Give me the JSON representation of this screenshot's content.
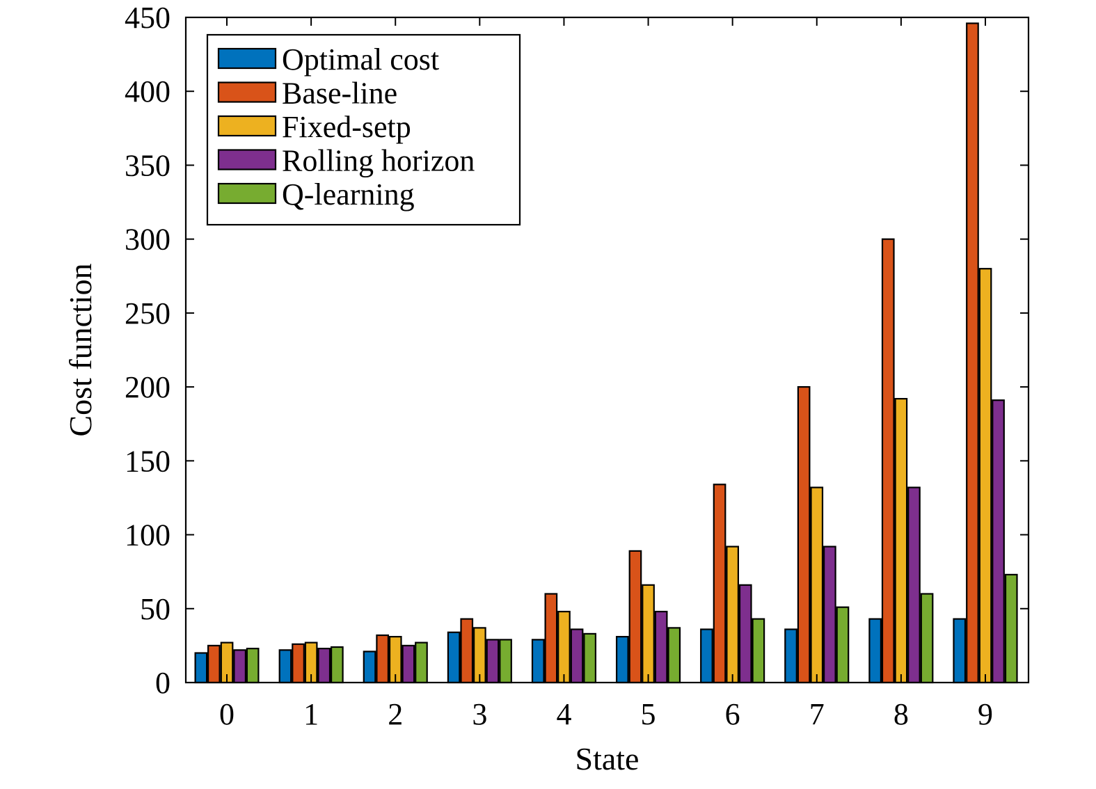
{
  "chart_data": {
    "type": "bar",
    "title": "",
    "xlabel": "State",
    "ylabel": "Cost function",
    "ylim": [
      0,
      450
    ],
    "yticks": [
      0,
      50,
      100,
      150,
      200,
      250,
      300,
      350,
      400,
      450
    ],
    "categories": [
      "0",
      "1",
      "2",
      "3",
      "4",
      "5",
      "6",
      "7",
      "8",
      "9"
    ],
    "legend_position": "top-left",
    "grid": false,
    "series": [
      {
        "name": "Optimal cost",
        "color": "#0072BD",
        "values": [
          20,
          22,
          21,
          34,
          29,
          31,
          36,
          36,
          43,
          43
        ]
      },
      {
        "name": "Base-line",
        "color": "#D95319",
        "values": [
          25,
          26,
          32,
          43,
          60,
          89,
          134,
          200,
          300,
          446
        ]
      },
      {
        "name": "Fixed-setp",
        "color": "#EDB120",
        "values": [
          27,
          27,
          31,
          37,
          48,
          66,
          92,
          132,
          192,
          280
        ]
      },
      {
        "name": "Rolling horizon",
        "color": "#7E2F8E",
        "values": [
          22,
          23,
          25,
          29,
          36,
          48,
          66,
          92,
          132,
          191
        ]
      },
      {
        "name": "Q-learning",
        "color": "#77AC30",
        "values": [
          23,
          24,
          27,
          29,
          33,
          37,
          43,
          51,
          60,
          73
        ]
      }
    ]
  }
}
